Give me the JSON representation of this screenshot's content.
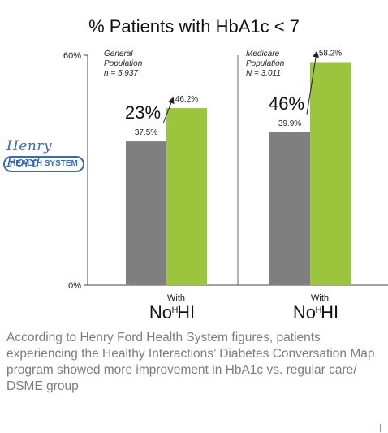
{
  "chart_data": {
    "type": "bar",
    "title": "% Patients with HbA1c < 7",
    "ylim": [
      0,
      60
    ],
    "yticks": [
      "0%",
      "60%"
    ],
    "groups": [
      {
        "population_label_1": "General",
        "population_label_2": "Population",
        "population_label_3": "n = 5,937",
        "increase_label": "23%",
        "bars": [
          {
            "value": 37.5,
            "label": "37.5%",
            "color": "#7f7f7f"
          },
          {
            "value": 46.2,
            "label": "46.2%",
            "color": "#9bc53d"
          }
        ],
        "xlabel_main": "No HI",
        "xlabel_super": "With",
        "xlabel_sub": "HI"
      },
      {
        "population_label_1": "Medicare",
        "population_label_2": "Population",
        "population_label_3": "N = 3,011",
        "increase_label": "46%",
        "bars": [
          {
            "value": 39.9,
            "label": "39.9%",
            "color": "#7f7f7f"
          },
          {
            "value": 58.2,
            "label": "58.2%",
            "color": "#9bc53d"
          }
        ],
        "xlabel_main": "No HI",
        "xlabel_super": "With",
        "xlabel_sub": "HI"
      }
    ]
  },
  "logo": {
    "script_text": "Henry Ford",
    "pill_text": "HEALTH SYSTEM"
  },
  "caption": "According to Henry Ford Health System figures, patients experiencing the Healthy Interactions’ Diabetes Conversation Map program showed more improvement in HbA1c vs. regular care/ DSME group"
}
